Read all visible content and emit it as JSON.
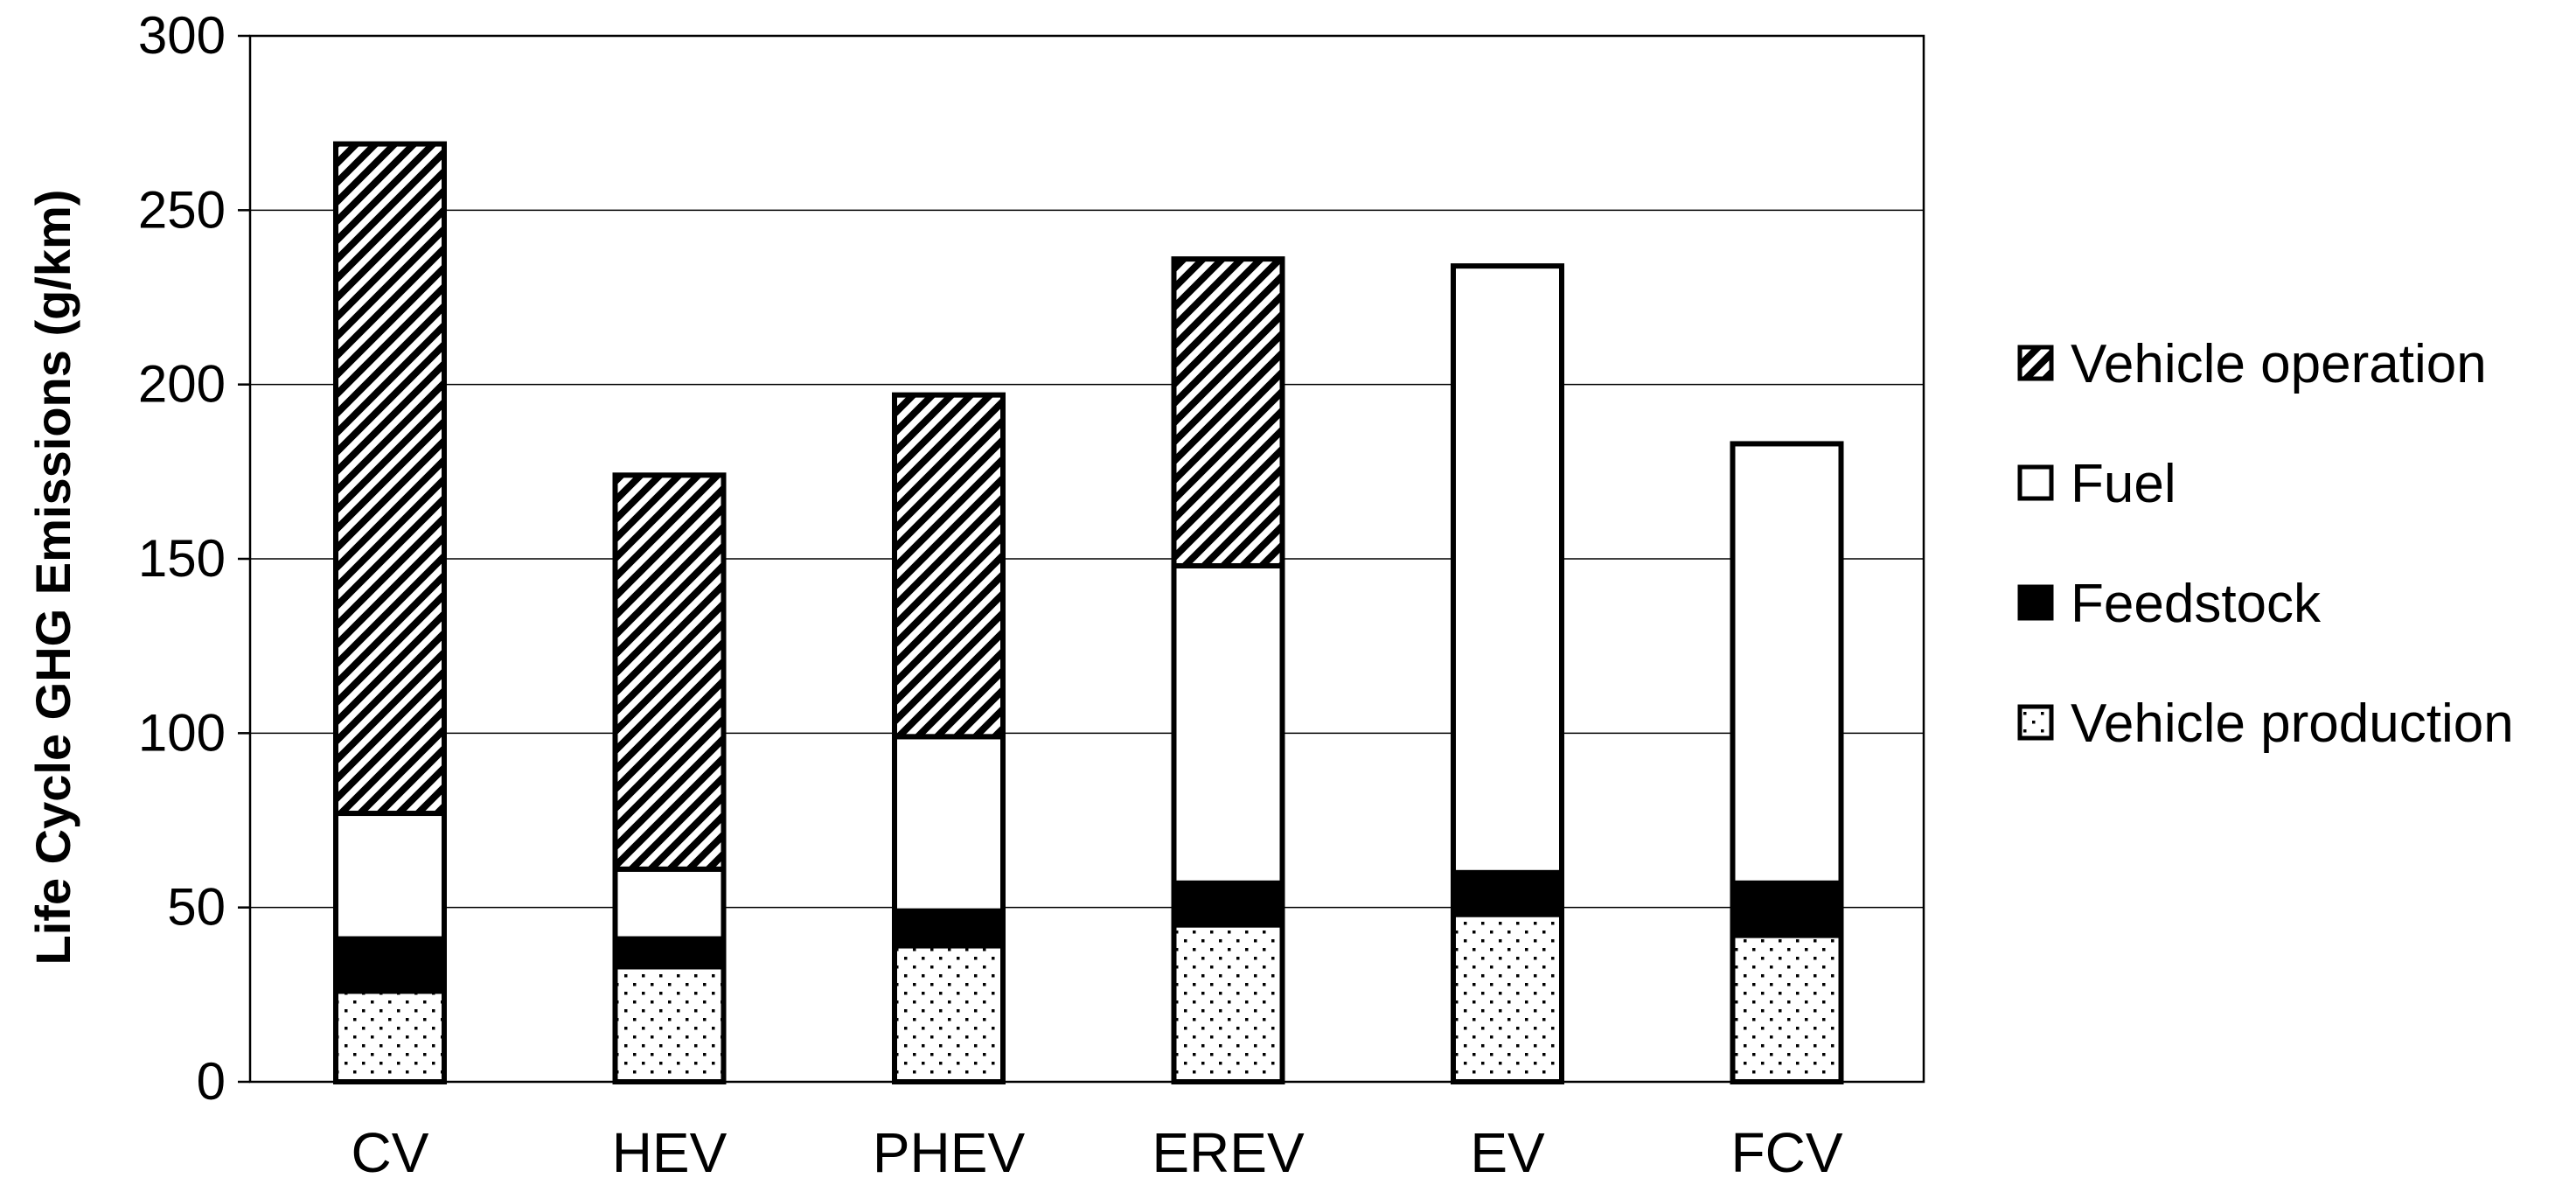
{
  "chart_data": {
    "type": "bar",
    "stacked": true,
    "title": "",
    "xlabel": "",
    "ylabel": "Life Cycle GHG Emissions (g/km)",
    "ylim": [
      0,
      300
    ],
    "yticks": [
      0,
      50,
      100,
      150,
      200,
      250,
      300
    ],
    "grid": true,
    "legend_position": "right",
    "categories": [
      "CV",
      "HEV",
      "PHEV",
      "EREV",
      "EV",
      "FCV"
    ],
    "series": [
      {
        "name": "Vehicle production",
        "pattern": "dots",
        "values": [
          26,
          33,
          39,
          45,
          48,
          42
        ]
      },
      {
        "name": "Feedstock",
        "pattern": "solid",
        "values": [
          15,
          8,
          10,
          12,
          12,
          15
        ]
      },
      {
        "name": "Fuel",
        "pattern": "white",
        "values": [
          36,
          20,
          50,
          91,
          174,
          126
        ]
      },
      {
        "name": "Vehicle operation",
        "pattern": "hatched",
        "values": [
          192,
          113,
          98,
          88,
          0,
          0
        ]
      }
    ],
    "legend_order": [
      "Vehicle operation",
      "Fuel",
      "Feedstock",
      "Vehicle production"
    ],
    "colors": {
      "ink": "#000000",
      "fill": "#ffffff",
      "grid": "#000000"
    }
  }
}
